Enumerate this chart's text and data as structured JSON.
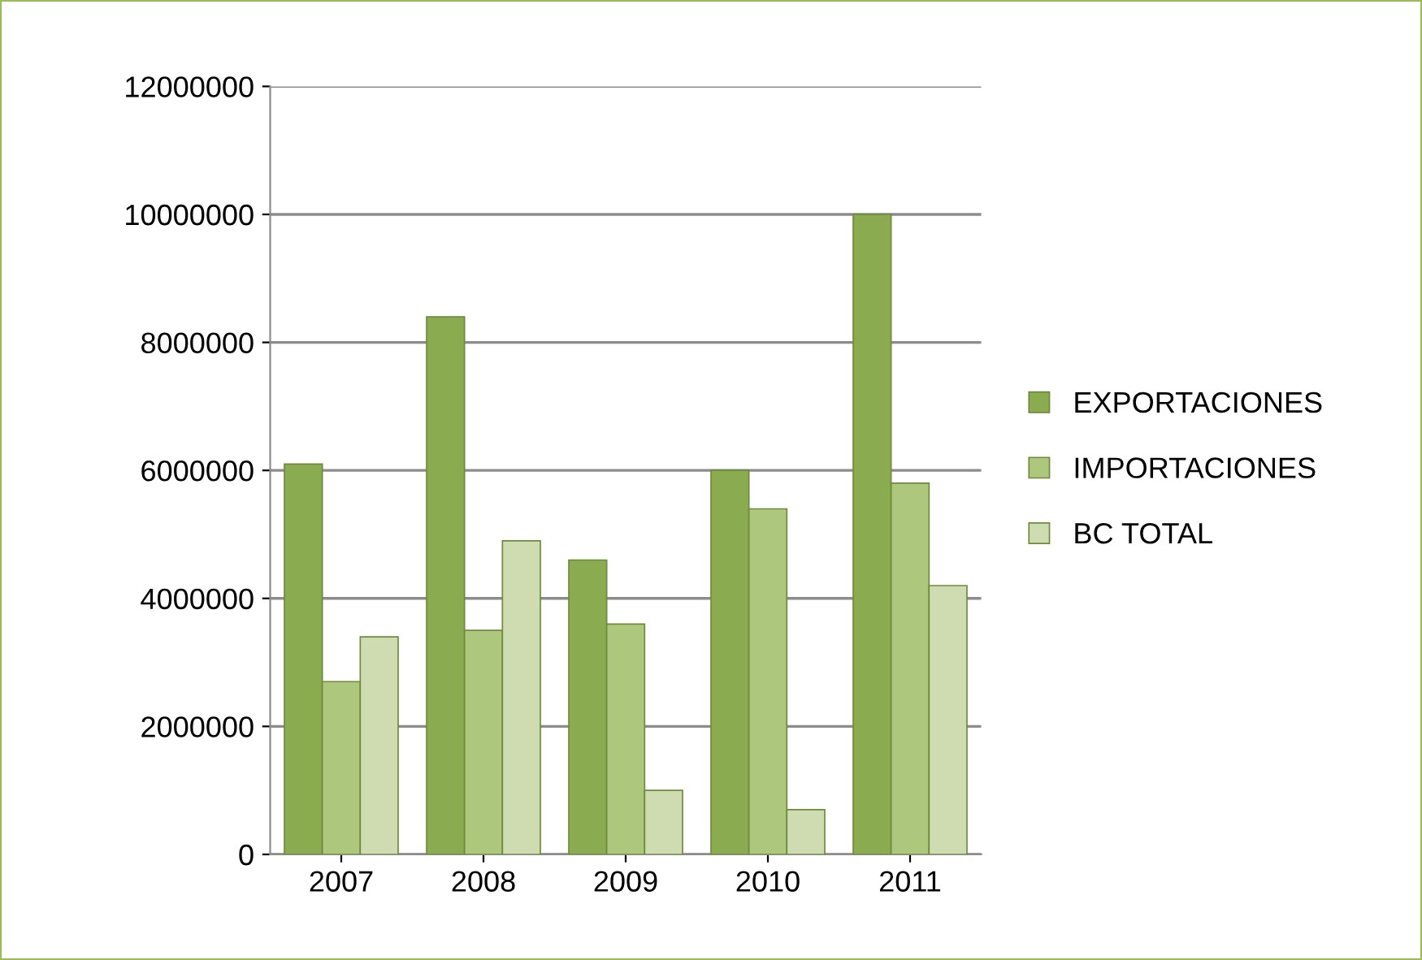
{
  "chart_data": {
    "type": "bar",
    "categories": [
      "2007",
      "2008",
      "2009",
      "2010",
      "2011"
    ],
    "series": [
      {
        "name": "EXPORTACIONES",
        "color": "#8aab4f",
        "values": [
          6100000,
          8400000,
          4600000,
          6000000,
          10000000
        ]
      },
      {
        "name": "IMPORTACIONES",
        "color": "#adc77c",
        "values": [
          2700000,
          3500000,
          3600000,
          5400000,
          5800000
        ]
      },
      {
        "name": "BC TOTAL",
        "color": "#cfdcb2",
        "values": [
          3400000,
          4900000,
          1000000,
          700000,
          4200000
        ]
      }
    ],
    "ylim": [
      0,
      12000000
    ],
    "yticks": [
      0,
      2000000,
      4000000,
      6000000,
      8000000,
      10000000,
      12000000
    ],
    "grid": "y",
    "legend": "right"
  }
}
